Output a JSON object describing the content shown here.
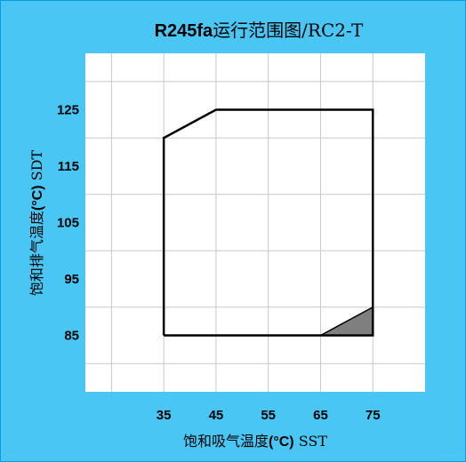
{
  "colors": {
    "background": "#49c6f4",
    "frame": "#0a9bd9",
    "plot_area": "#ffffff",
    "grid": "#c8c8c8",
    "envelope": "#000000",
    "shaded_region": "#7f7f7f"
  },
  "chart_data": {
    "type": "line",
    "title": {
      "bold_part": "R245fa",
      "rest": "运行范围图/RC2-T"
    },
    "xlabel": {
      "prefix": "饱和吸气温度",
      "unit": "(°C)",
      "suffix": " SST"
    },
    "ylabel": {
      "prefix": "饱和排气温度",
      "unit": "(°C)",
      "suffix": " SDT"
    },
    "xlim": [
      20,
      85
    ],
    "ylim": [
      75,
      135
    ],
    "x_ticks": [
      35,
      45,
      55,
      65,
      75
    ],
    "y_ticks": [
      85,
      95,
      105,
      115,
      125
    ],
    "grid": true,
    "series": [
      {
        "kind": "envelope",
        "points": [
          [
            35,
            85
          ],
          [
            35,
            120
          ],
          [
            45,
            125
          ],
          [
            75,
            125
          ],
          [
            75,
            85
          ],
          [
            35,
            85
          ]
        ]
      },
      {
        "kind": "shaded",
        "points": [
          [
            65,
            85
          ],
          [
            75,
            90
          ],
          [
            75,
            85
          ],
          [
            65,
            85
          ]
        ]
      }
    ]
  }
}
